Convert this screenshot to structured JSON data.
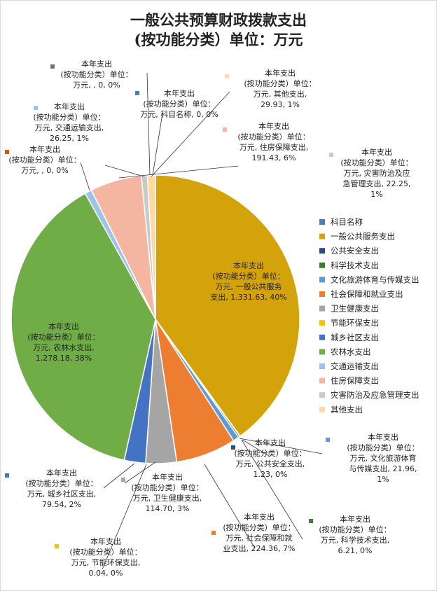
{
  "title_line1": "一般公共预算财政拨款支出",
  "title_line2": "(按功能分类）单位：万元",
  "chart_data": {
    "type": "pie",
    "title": "一般公共预算财政拨款支出(按功能分类）单位：万元",
    "series_name": "本年支出(按功能分类）单位：万元",
    "legend_position": "right",
    "slices": [
      {
        "category": "科目名称",
        "value": 0,
        "percent": "0%",
        "color": "#4a7eb5",
        "label_lines": [
          "本年支出",
          "(按功能分类）单位：",
          "万元, 科目名称, 0, 0%"
        ]
      },
      {
        "category": "一般公共服务支出",
        "value": 1331.63,
        "percent": "40%",
        "color": "#d4a20b",
        "label_lines": [
          "本年支出",
          "(按功能分类）单位：",
          "万元, 一般公共服务",
          "支出, 1,331.63, 40%"
        ]
      },
      {
        "category": "公共安全支出",
        "value": 1.23,
        "percent": "0%",
        "color": "#2a4d8c",
        "label_lines": [
          "本年支出",
          "(按功能分类）单位：",
          "万元, 公共安全支出,",
          "1.23, 0%"
        ]
      },
      {
        "category": "科学技术支出",
        "value": 6.21,
        "percent": "0%",
        "color": "#3e7d34",
        "label_lines": [
          "本年支出",
          "(按功能分类）单位：",
          "万元, 科学技术支出,",
          "6.21, 0%"
        ]
      },
      {
        "category": "文化旅游体育与传媒支出",
        "value": 21.96,
        "percent": "1%",
        "color": "#5b9bd5",
        "label_lines": [
          "本年支出",
          "(按功能分类）单位：",
          "万元, 文化旅游体育",
          "与传媒支出, 21.96,",
          "1%"
        ]
      },
      {
        "category": "社会保障和就业支出",
        "value": 224.36,
        "percent": "7%",
        "color": "#ed7d31",
        "label_lines": [
          "本年支出",
          "(按功能分类）单位：",
          "万元, 社会保障和就",
          "业支出, 224.36, 7%"
        ]
      },
      {
        "category": "卫生健康支出",
        "value": 114.7,
        "percent": "3%",
        "color": "#a5a5a5",
        "label_lines": [
          "本年支出",
          "(按功能分类）单位：",
          "万元, 卫生健康支出,",
          "114.70, 3%"
        ]
      },
      {
        "category": "节能环保支出",
        "value": 0.04,
        "percent": "0%",
        "color": "#ffc000",
        "label_lines": [
          "本年支出",
          "(按功能分类）单位：",
          "万元, 节能环保支出,",
          "0.04, 0%"
        ]
      },
      {
        "category": "城乡社区支出",
        "value": 79.54,
        "percent": "2%",
        "color": "#4472c4",
        "label_lines": [
          "本年支出",
          "(按功能分类）单位：",
          "万元, 城乡社区支出,",
          "79.54, 2%"
        ]
      },
      {
        "category": "农林水支出",
        "value": 1278.18,
        "percent": "38%",
        "color": "#70ad47",
        "label_lines": [
          "本年支出",
          "(按功能分类）单位：",
          "万元, 农林水支出,",
          "1,278.18, 38%"
        ]
      },
      {
        "category": "交通运输支出",
        "value": 26.25,
        "percent": "1%",
        "color": "#9dc3e6",
        "label_lines": [
          "本年支出",
          "(按功能分类）单位：",
          "万元, 交通运输支出,",
          "26.25, 1%"
        ]
      },
      {
        "category": "住房保障支出",
        "value": 191.43,
        "percent": "6%",
        "color": "#f4b6a0",
        "label_lines": [
          "本年支出",
          "(按功能分类）单位：",
          "万元, 住房保障支出,",
          "191.43, 6%"
        ]
      },
      {
        "category": "灾害防治及应急管理支出",
        "value": 22.25,
        "percent": "1%",
        "color": "#c9c9c9",
        "label_lines": [
          "本年支出",
          "(按功能分类）单位：",
          "万元, 灾害防治及应",
          "急管理支出, 22.25,",
          "1%"
        ]
      },
      {
        "category": "其他支出",
        "value": 29.93,
        "percent": "1%",
        "color": "#ffd9a0",
        "label_lines": [
          "本年支出",
          "(按功能分类）单位：",
          "万元, 其他支出,",
          "29.93, 1%"
        ]
      }
    ],
    "extra_labels": [
      {
        "color": "#767171",
        "label_lines": [
          "本年支出",
          "(按功能分类）单位：",
          "万元, , 0, 0%"
        ]
      },
      {
        "color": "#c55a11",
        "label_lines": [
          "本年支出",
          "(按功能分类）单位：",
          "万元, , 0, 0%"
        ]
      }
    ]
  }
}
